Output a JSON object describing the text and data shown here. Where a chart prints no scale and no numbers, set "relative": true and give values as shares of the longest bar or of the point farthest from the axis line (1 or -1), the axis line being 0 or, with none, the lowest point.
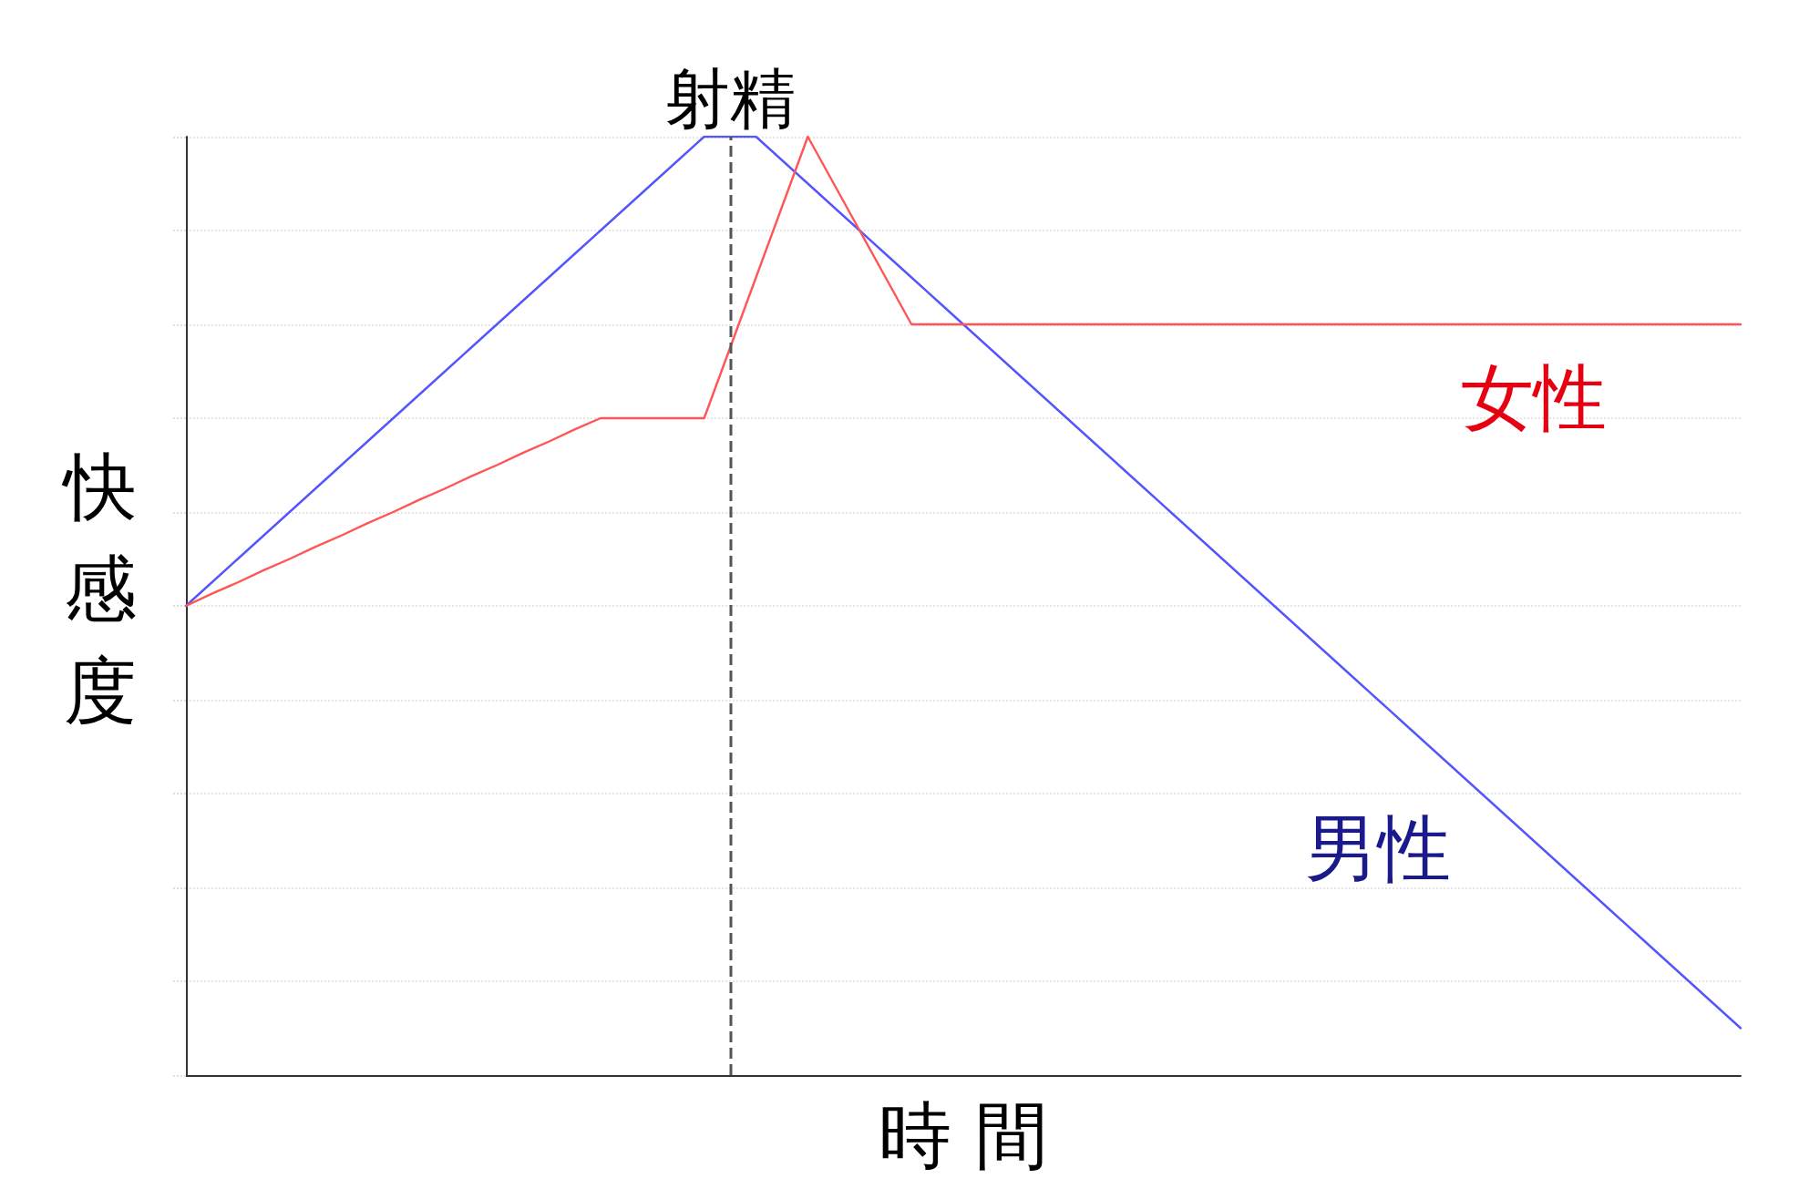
{
  "chart_data": {
    "type": "line",
    "relative": true,
    "xlabel": "時 間",
    "ylabel": "快感度",
    "categories": [
      null,
      null,
      null,
      null,
      null,
      null,
      null,
      null,
      null,
      null,
      null,
      null,
      null,
      null,
      null,
      null,
      null,
      null,
      null,
      null,
      null,
      null,
      null,
      null,
      null,
      null,
      null,
      null,
      null,
      null,
      null,
      null,
      null,
      null,
      null,
      null,
      null,
      null,
      null,
      null,
      null,
      null,
      null,
      null,
      null,
      null,
      null,
      null,
      null,
      null,
      null,
      null,
      null,
      null,
      null,
      null,
      null,
      null,
      null,
      null,
      null
    ],
    "series": [
      {
        "name": "男性",
        "color": "#5555ff",
        "values": [
          0.5,
          0.525,
          0.55,
          0.575,
          0.6,
          0.625,
          0.65,
          0.675,
          0.7,
          0.725,
          0.75,
          0.775,
          0.8,
          0.825,
          0.85,
          0.875,
          0.9,
          0.925,
          0.95,
          0.975,
          1,
          1,
          1,
          0.975,
          0.95,
          0.925,
          0.9,
          0.875,
          0.85,
          0.825,
          0.8,
          0.775,
          0.75,
          0.725,
          0.7,
          0.675,
          0.65,
          0.625,
          0.6,
          0.575,
          0.55,
          0.525,
          0.5,
          0.475,
          0.45,
          0.425,
          0.4,
          0.375,
          0.35,
          0.325,
          0.3,
          0.275,
          0.25,
          0.225,
          0.2,
          0.175,
          0.15,
          0.125,
          0.1,
          0.075,
          0.05
        ]
      },
      {
        "name": "女性",
        "color": "#ff5555",
        "values": [
          0.5,
          0.513,
          0.525,
          0.538,
          0.55,
          0.563,
          0.575,
          0.588,
          0.6,
          0.613,
          0.625,
          0.638,
          0.65,
          0.663,
          0.675,
          0.688,
          0.7,
          0.7,
          0.7,
          0.7,
          0.7,
          0.775,
          0.85,
          0.925,
          1,
          0.95,
          0.9,
          0.85,
          0.8,
          0.8,
          0.8,
          0.8,
          0.8,
          0.8,
          0.8,
          0.8,
          0.8,
          0.8,
          0.8,
          0.8,
          0.8,
          0.8,
          0.8,
          0.8,
          0.8,
          0.8,
          0.8,
          0.8,
          0.8,
          0.8,
          0.8,
          0.8,
          0.8,
          0.8,
          0.8,
          0.8,
          0.8,
          0.8,
          0.8,
          0.8,
          0.8
        ]
      }
    ],
    "annotations": [
      "射精"
    ],
    "grid": "y",
    "marker": "none",
    "line_style": "solid",
    "legend": false
  }
}
